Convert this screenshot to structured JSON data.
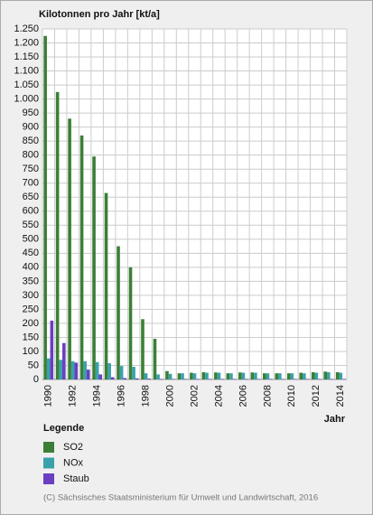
{
  "chart_data": {
    "type": "bar",
    "title": "Kilotonnen pro Jahr [kt/a]",
    "x_label": "Jahr",
    "legend_title": "Legende",
    "footnote": "(C) Sächsisches Staatsministerium für Umwelt und Landwirtschaft, 2016",
    "categories": [
      "1990",
      null,
      "1992",
      null,
      "1994",
      null,
      "1996",
      null,
      "1998",
      null,
      "2000",
      null,
      "2002",
      null,
      "2004",
      null,
      "2006",
      null,
      "2008",
      null,
      "2010",
      null,
      "2012",
      null,
      "2014"
    ],
    "series": [
      {
        "name": "SO2",
        "color": "#3b7f36",
        "values": [
          1225,
          1025,
          930,
          870,
          795,
          665,
          475,
          400,
          215,
          145,
          30,
          22,
          24,
          26,
          25,
          22,
          25,
          25,
          22,
          22,
          22,
          24,
          26,
          28,
          26
        ]
      },
      {
        "name": "NOx",
        "color": "#3aa1aa",
        "values": [
          75,
          70,
          65,
          65,
          62,
          58,
          48,
          45,
          22,
          18,
          20,
          22,
          22,
          24,
          24,
          22,
          24,
          24,
          22,
          22,
          22,
          22,
          24,
          26,
          24
        ]
      },
      {
        "name": "Staub",
        "color": "#6a3fc0",
        "values": [
          210,
          130,
          60,
          35,
          18,
          8,
          5,
          4,
          3,
          2,
          2,
          2,
          2,
          2,
          2,
          2,
          2,
          2,
          2,
          2,
          2,
          2,
          2,
          2,
          2
        ]
      }
    ],
    "ylim": [
      0,
      1250
    ],
    "yticks": [
      0,
      50,
      100,
      150,
      200,
      250,
      300,
      350,
      400,
      450,
      500,
      550,
      600,
      650,
      700,
      750,
      800,
      850,
      900,
      950,
      {
        "value": 1000,
        "label": "1.000"
      },
      {
        "value": 1050,
        "label": "1.050"
      },
      {
        "value": 1100,
        "label": "1.100"
      },
      {
        "value": 1150,
        "label": "1.150"
      },
      {
        "value": 1200,
        "label": "1.200"
      },
      {
        "value": 1250,
        "label": "1.250"
      }
    ],
    "grid": true
  }
}
